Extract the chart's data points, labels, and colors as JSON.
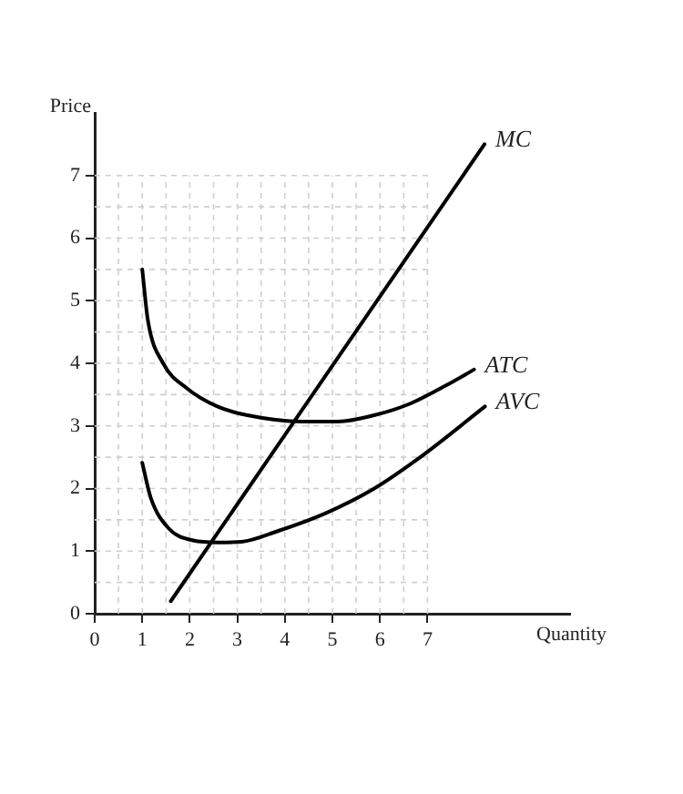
{
  "chart_data": {
    "type": "line",
    "xlabel": "Quantity",
    "ylabel": "Price",
    "xlim": [
      0,
      10
    ],
    "ylim": [
      0,
      8
    ],
    "xticks": [
      0,
      {
        "value": 0.5,
        "label": null
      },
      1,
      {
        "value": 1.5,
        "label": null
      },
      2,
      {
        "value": 2.5,
        "label": null
      },
      3,
      {
        "value": 3.5,
        "label": null
      },
      4,
      {
        "value": 4.5,
        "label": null
      },
      5,
      {
        "value": 5.5,
        "label": null
      },
      6,
      {
        "value": 6.5,
        "label": null
      },
      7
    ],
    "yticks": [
      0,
      {
        "value": 0.5,
        "label": null
      },
      1,
      {
        "value": 1.5,
        "label": null
      },
      2,
      {
        "value": 2.5,
        "label": null
      },
      3,
      {
        "value": 3.5,
        "label": null
      },
      4,
      {
        "value": 4.5,
        "label": null
      },
      5,
      {
        "value": 5.5,
        "label": null
      },
      6,
      {
        "value": 6.5,
        "label": null
      },
      7
    ],
    "grid": true,
    "legend": false,
    "marker": "none",
    "line_style": "solid",
    "series": [
      {
        "name": "MC",
        "color": "#000000",
        "x": [
          1.6,
          8.2
        ],
        "values": [
          0.2,
          7.5
        ]
      },
      {
        "name": "ATC",
        "color": "#000000",
        "x": [
          1,
          1.12,
          1.44,
          1.94,
          2.58,
          3.21,
          4.36,
          5.12,
          5.88,
          6.65,
          7.4,
          7.98
        ],
        "values": [
          5.5,
          4.68,
          4.0,
          3.6,
          3.31,
          3.17,
          3.07,
          3.07,
          3.17,
          3.36,
          3.65,
          3.9
        ]
      },
      {
        "name": "AVC",
        "color": "#000000",
        "x": [
          1,
          1.18,
          1.56,
          2.07,
          2.58,
          3.09,
          3.85,
          4.87,
          5.88,
          6.9,
          8.21
        ],
        "values": [
          2.41,
          1.85,
          1.36,
          1.17,
          1.14,
          1.15,
          1.32,
          1.61,
          2.0,
          2.53,
          3.31
        ]
      }
    ]
  }
}
